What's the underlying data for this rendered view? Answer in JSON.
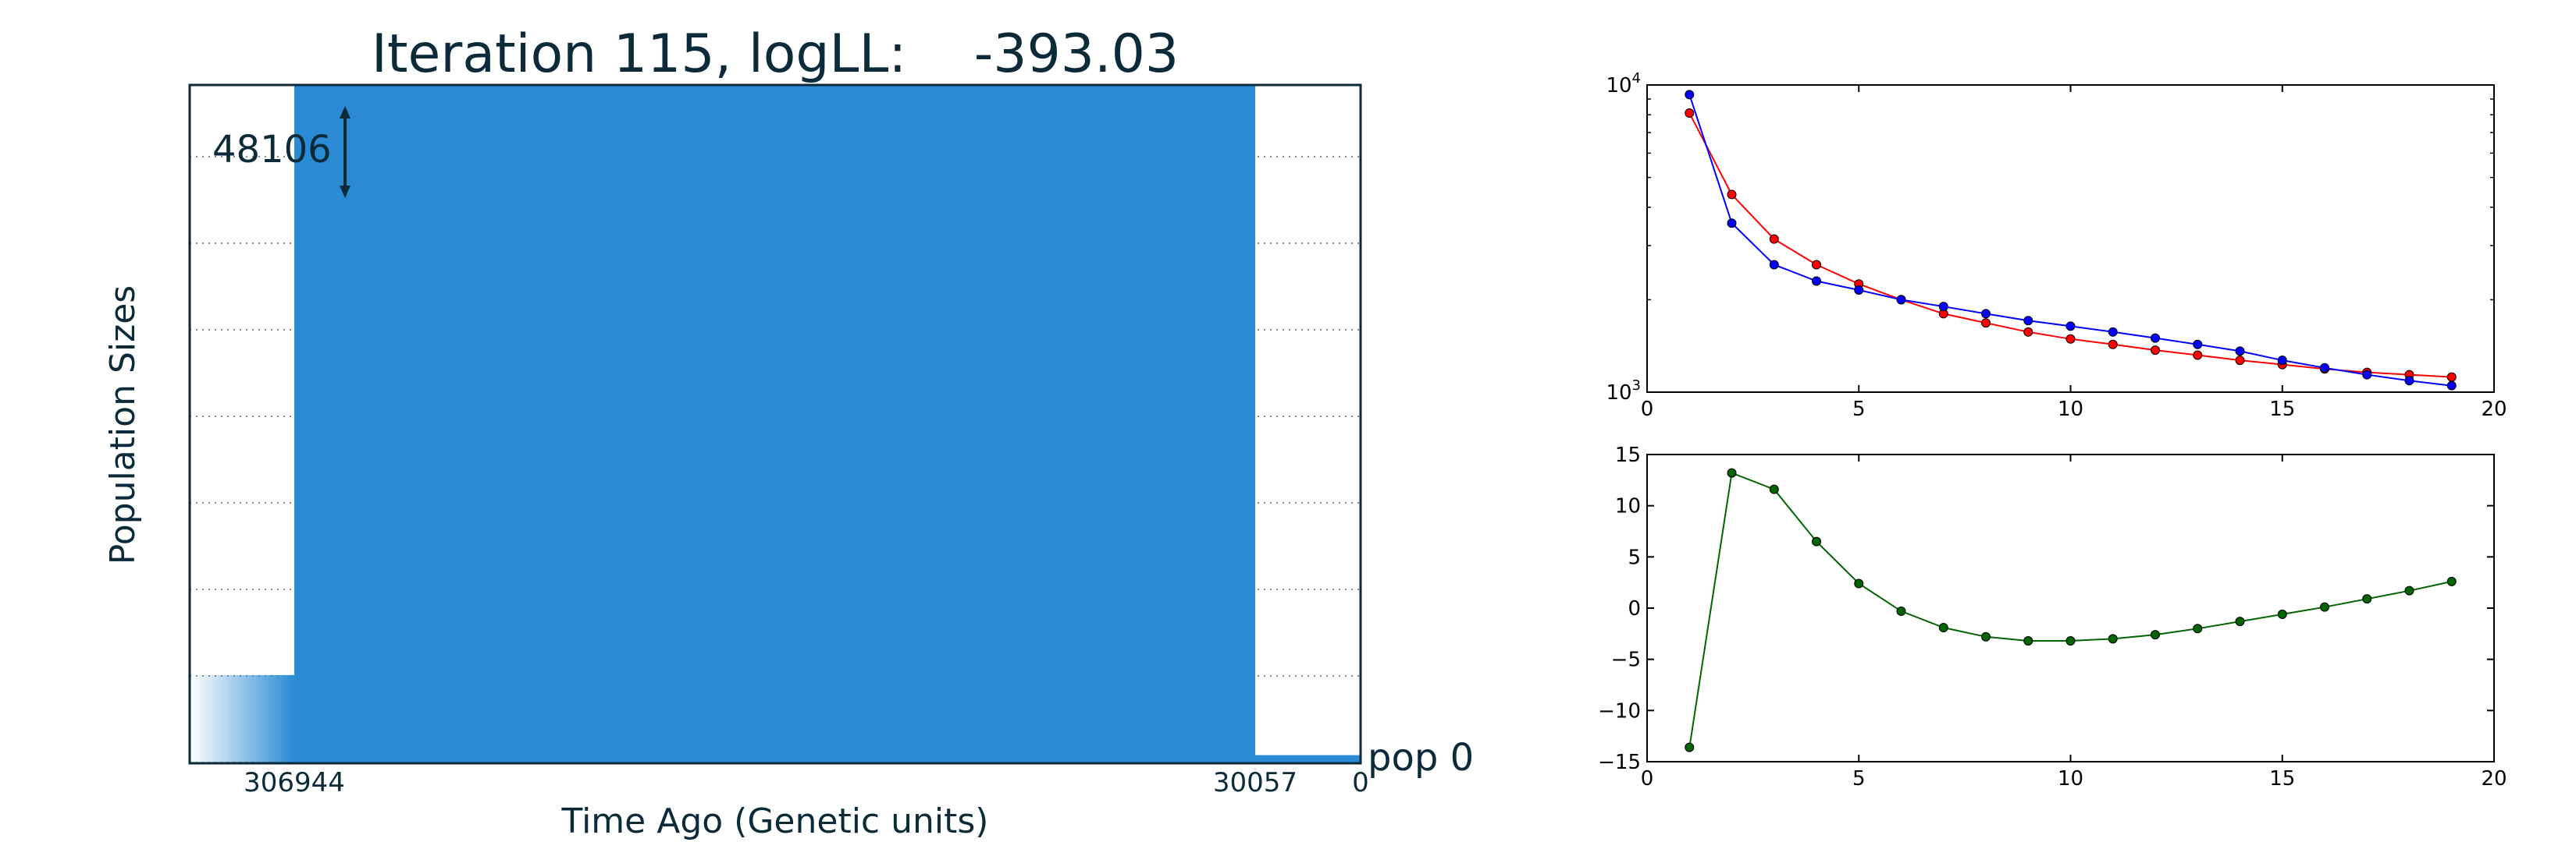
{
  "chart_data": [
    {
      "type": "area",
      "title": "Iteration 115, logLL:    -393.03",
      "xlabel": "Time Ago (Genetic units)",
      "ylabel": "Population Sizes",
      "x_tick_labels": [
        "306944",
        "30057",
        "0"
      ],
      "scale_label": "48106",
      "population_label": "pop 0",
      "epochs": [
        {
          "start": 0,
          "end": 30057,
          "relative_size": 0.012
        },
        {
          "start": 30057,
          "end": 306944,
          "relative_size": 1.0
        },
        {
          "start": 306944,
          "end": null,
          "relative_size": 0.13,
          "fades": true
        }
      ],
      "grid": "horizontal dotted",
      "colors": {
        "fill": "#2a8bd4",
        "axis": "#0b2a3a"
      }
    },
    {
      "type": "line",
      "yscale": "log",
      "xlim": [
        0,
        20
      ],
      "ylim": [
        1000,
        10000
      ],
      "x_ticks": [
        0,
        5,
        10,
        15,
        20
      ],
      "y_ticks": [
        1000,
        10000
      ],
      "y_tick_base": "10",
      "y_tick_exps": [
        "3",
        "4"
      ],
      "grid": false,
      "x": [
        1,
        2,
        3,
        4,
        5,
        6,
        7,
        8,
        9,
        10,
        11,
        12,
        13,
        14,
        15,
        16,
        17,
        18,
        19
      ],
      "series": [
        {
          "color": "#ff0000",
          "values": [
            8100,
            4400,
            3150,
            2600,
            2250,
            2000,
            1800,
            1680,
            1570,
            1490,
            1430,
            1370,
            1320,
            1270,
            1230,
            1190,
            1160,
            1140,
            1120
          ]
        },
        {
          "color": "#0000ff",
          "values": [
            9300,
            3550,
            2600,
            2300,
            2150,
            2000,
            1900,
            1800,
            1710,
            1640,
            1570,
            1500,
            1430,
            1360,
            1270,
            1200,
            1140,
            1090,
            1050
          ]
        }
      ]
    },
    {
      "type": "line",
      "xlim": [
        0,
        20
      ],
      "ylim": [
        -15,
        15
      ],
      "x_ticks": [
        0,
        5,
        10,
        15,
        20
      ],
      "y_ticks": [
        -15,
        -10,
        -5,
        0,
        5,
        10,
        15
      ],
      "grid": false,
      "x": [
        1,
        2,
        3,
        4,
        5,
        6,
        7,
        8,
        9,
        10,
        11,
        12,
        13,
        14,
        15,
        16,
        17,
        18,
        19
      ],
      "series": [
        {
          "color": "#006400",
          "values": [
            -13.6,
            13.2,
            11.6,
            6.5,
            2.4,
            -0.3,
            -1.9,
            -2.8,
            -3.2,
            -3.2,
            -3.0,
            -2.6,
            -2.0,
            -1.3,
            -0.6,
            0.1,
            0.9,
            1.7,
            2.6
          ]
        }
      ]
    }
  ]
}
